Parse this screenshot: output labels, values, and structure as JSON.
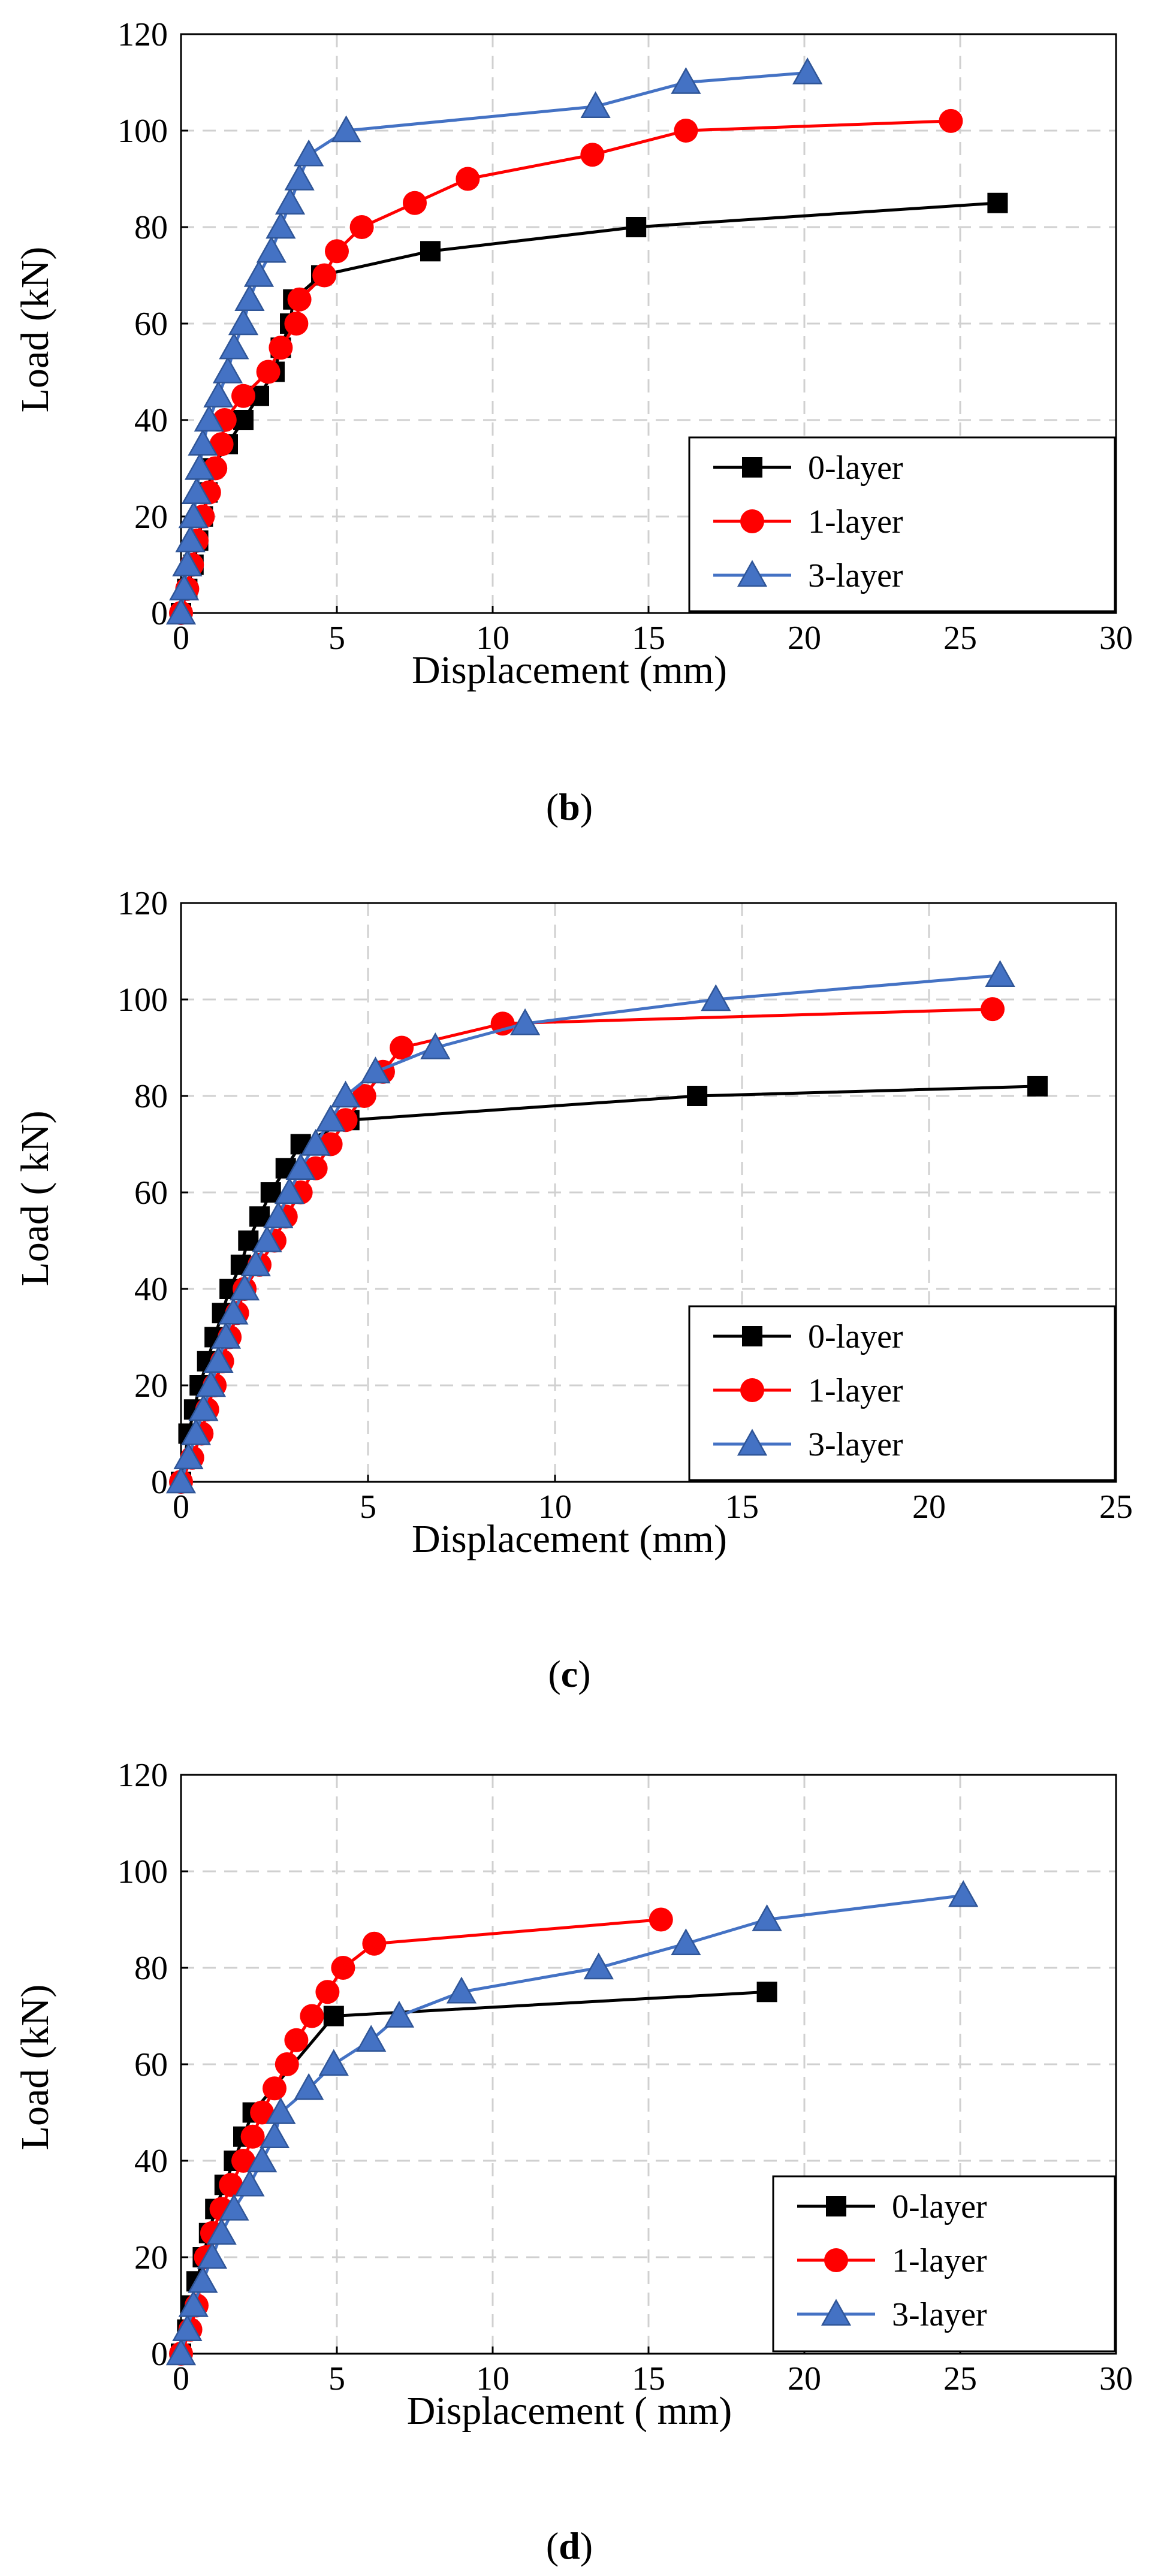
{
  "figure_colors": {
    "series": [
      "#000000",
      "#ff0000",
      "#4472c4"
    ],
    "grid": "#d0d0d0",
    "axis": "#000000"
  },
  "chart_data": [
    {
      "type": "line",
      "caption": {
        "open": "(",
        "letter": "b",
        "close": ")"
      },
      "xlabel": "Displacement (mm)",
      "ylabel": "Load (kN)",
      "xlim": [
        0,
        30
      ],
      "ylim": [
        0,
        120
      ],
      "xticks": [
        0,
        5,
        10,
        15,
        20,
        25,
        30
      ],
      "yticks": [
        0,
        20,
        40,
        60,
        80,
        100,
        120
      ],
      "grid": true,
      "legend": {
        "position": "bottom-right",
        "entries": [
          "0-layer",
          "1-layer",
          "3-layer"
        ]
      },
      "series": [
        {
          "name": "0-layer",
          "marker": "square",
          "points": [
            [
              0,
              0
            ],
            [
              0.2,
              5
            ],
            [
              0.4,
              10
            ],
            [
              0.55,
              15
            ],
            [
              0.7,
              20
            ],
            [
              0.85,
              25
            ],
            [
              1.0,
              30
            ],
            [
              1.5,
              35
            ],
            [
              2.0,
              40
            ],
            [
              2.5,
              45
            ],
            [
              3.0,
              50
            ],
            [
              3.2,
              55
            ],
            [
              3.5,
              60
            ],
            [
              3.6,
              65
            ],
            [
              4.5,
              70
            ],
            [
              8.0,
              75
            ],
            [
              14.6,
              80
            ],
            [
              26.2,
              85
            ]
          ]
        },
        {
          "name": "1-layer",
          "marker": "circle",
          "points": [
            [
              0,
              0
            ],
            [
              0.2,
              5
            ],
            [
              0.35,
              10
            ],
            [
              0.5,
              15
            ],
            [
              0.7,
              20
            ],
            [
              0.9,
              25
            ],
            [
              1.1,
              30
            ],
            [
              1.3,
              35
            ],
            [
              1.4,
              40
            ],
            [
              2.0,
              45
            ],
            [
              2.8,
              50
            ],
            [
              3.2,
              55
            ],
            [
              3.7,
              60
            ],
            [
              3.8,
              65
            ],
            [
              4.6,
              70
            ],
            [
              5.0,
              75
            ],
            [
              5.8,
              80
            ],
            [
              7.5,
              85
            ],
            [
              9.2,
              90
            ],
            [
              13.2,
              95
            ],
            [
              16.2,
              100
            ],
            [
              24.7,
              102
            ]
          ]
        },
        {
          "name": "3-layer",
          "marker": "triangle",
          "points": [
            [
              0,
              0
            ],
            [
              0.1,
              5
            ],
            [
              0.2,
              10
            ],
            [
              0.3,
              15
            ],
            [
              0.4,
              20
            ],
            [
              0.5,
              25
            ],
            [
              0.6,
              30
            ],
            [
              0.7,
              35
            ],
            [
              0.9,
              40
            ],
            [
              1.2,
              45
            ],
            [
              1.5,
              50
            ],
            [
              1.7,
              55
            ],
            [
              2.0,
              60
            ],
            [
              2.2,
              65
            ],
            [
              2.5,
              70
            ],
            [
              2.9,
              75
            ],
            [
              3.2,
              80
            ],
            [
              3.5,
              85
            ],
            [
              3.8,
              90
            ],
            [
              4.1,
              95
            ],
            [
              5.3,
              100
            ],
            [
              13.3,
              105
            ],
            [
              16.2,
              110
            ],
            [
              20.1,
              112
            ]
          ]
        }
      ]
    },
    {
      "type": "line",
      "caption": {
        "open": "(",
        "letter": "c",
        "close": ")"
      },
      "xlabel": "Displacement (mm)",
      "ylabel": "Load ( kN)",
      "xlim": [
        0,
        25
      ],
      "ylim": [
        0,
        120
      ],
      "xticks": [
        0,
        5,
        10,
        15,
        20,
        25
      ],
      "yticks": [
        0,
        20,
        40,
        60,
        80,
        100,
        120
      ],
      "grid": true,
      "legend": {
        "position": "bottom-right",
        "entries": [
          "0-layer",
          "1-layer",
          "3-layer"
        ]
      },
      "series": [
        {
          "name": "0-layer",
          "marker": "square",
          "points": [
            [
              0,
              0
            ],
            [
              0.2,
              10
            ],
            [
              0.35,
              15
            ],
            [
              0.5,
              20
            ],
            [
              0.7,
              25
            ],
            [
              0.9,
              30
            ],
            [
              1.1,
              35
            ],
            [
              1.3,
              40
            ],
            [
              1.6,
              45
            ],
            [
              1.8,
              50
            ],
            [
              2.1,
              55
            ],
            [
              2.4,
              60
            ],
            [
              2.8,
              65
            ],
            [
              3.2,
              70
            ],
            [
              4.5,
              75
            ],
            [
              13.8,
              80
            ],
            [
              22.9,
              82
            ]
          ]
        },
        {
          "name": "1-layer",
          "marker": "circle",
          "points": [
            [
              0,
              0
            ],
            [
              0.3,
              5
            ],
            [
              0.55,
              10
            ],
            [
              0.7,
              15
            ],
            [
              0.9,
              20
            ],
            [
              1.1,
              25
            ],
            [
              1.3,
              30
            ],
            [
              1.5,
              35
            ],
            [
              1.7,
              40
            ],
            [
              2.1,
              45
            ],
            [
              2.5,
              50
            ],
            [
              2.8,
              55
            ],
            [
              3.2,
              60
            ],
            [
              3.6,
              65
            ],
            [
              4.0,
              70
            ],
            [
              4.4,
              75
            ],
            [
              4.9,
              80
            ],
            [
              5.4,
              85
            ],
            [
              5.9,
              90
            ],
            [
              8.6,
              95
            ],
            [
              21.7,
              98
            ]
          ]
        },
        {
          "name": "3-layer",
          "marker": "triangle",
          "points": [
            [
              0,
              0
            ],
            [
              0.2,
              5
            ],
            [
              0.4,
              10
            ],
            [
              0.6,
              15
            ],
            [
              0.8,
              20
            ],
            [
              1.0,
              25
            ],
            [
              1.2,
              30
            ],
            [
              1.4,
              35
            ],
            [
              1.7,
              40
            ],
            [
              2.0,
              45
            ],
            [
              2.3,
              50
            ],
            [
              2.6,
              55
            ],
            [
              2.9,
              60
            ],
            [
              3.2,
              65
            ],
            [
              3.6,
              70
            ],
            [
              4.0,
              75
            ],
            [
              4.4,
              80
            ],
            [
              5.2,
              85
            ],
            [
              6.8,
              90
            ],
            [
              9.2,
              95
            ],
            [
              14.3,
              100
            ],
            [
              21.9,
              105
            ]
          ]
        }
      ]
    },
    {
      "type": "line",
      "caption": {
        "open": "(",
        "letter": "d",
        "close": ")"
      },
      "xlabel": "Displacement ( mm)",
      "ylabel": "Load (kN)",
      "xlim": [
        0,
        30
      ],
      "ylim": [
        0,
        120
      ],
      "xticks": [
        0,
        5,
        10,
        15,
        20,
        25,
        30
      ],
      "yticks": [
        0,
        20,
        40,
        60,
        80,
        100,
        120
      ],
      "grid": true,
      "legend": {
        "position": "bottom-right",
        "entries": [
          "0-layer",
          "1-layer",
          "3-layer"
        ]
      },
      "series": [
        {
          "name": "0-layer",
          "marker": "square",
          "points": [
            [
              0,
              0
            ],
            [
              0.2,
              5
            ],
            [
              0.3,
              10
            ],
            [
              0.5,
              15
            ],
            [
              0.7,
              20
            ],
            [
              0.9,
              25
            ],
            [
              1.1,
              30
            ],
            [
              1.4,
              35
            ],
            [
              1.7,
              40
            ],
            [
              2.0,
              45
            ],
            [
              2.3,
              50
            ],
            [
              4.9,
              70
            ],
            [
              18.8,
              75
            ]
          ]
        },
        {
          "name": "1-layer",
          "marker": "circle",
          "points": [
            [
              0,
              0
            ],
            [
              0.3,
              5
            ],
            [
              0.5,
              10
            ],
            [
              0.8,
              20
            ],
            [
              1.0,
              25
            ],
            [
              1.3,
              30
            ],
            [
              1.6,
              35
            ],
            [
              2.0,
              40
            ],
            [
              2.3,
              45
            ],
            [
              2.6,
              50
            ],
            [
              3.0,
              55
            ],
            [
              3.4,
              60
            ],
            [
              3.7,
              65
            ],
            [
              4.2,
              70
            ],
            [
              4.7,
              75
            ],
            [
              5.2,
              80
            ],
            [
              6.2,
              85
            ],
            [
              15.4,
              90
            ]
          ]
        },
        {
          "name": "3-layer",
          "marker": "triangle",
          "points": [
            [
              0,
              0
            ],
            [
              0.2,
              5
            ],
            [
              0.4,
              10
            ],
            [
              0.7,
              15
            ],
            [
              1.0,
              20
            ],
            [
              1.3,
              25
            ],
            [
              1.7,
              30
            ],
            [
              2.2,
              35
            ],
            [
              2.6,
              40
            ],
            [
              3.0,
              45
            ],
            [
              3.2,
              50
            ],
            [
              4.1,
              55
            ],
            [
              4.9,
              60
            ],
            [
              6.1,
              65
            ],
            [
              7.0,
              70
            ],
            [
              9.0,
              75
            ],
            [
              13.4,
              80
            ],
            [
              16.2,
              85
            ],
            [
              18.8,
              90
            ],
            [
              25.1,
              95
            ]
          ]
        }
      ]
    }
  ]
}
